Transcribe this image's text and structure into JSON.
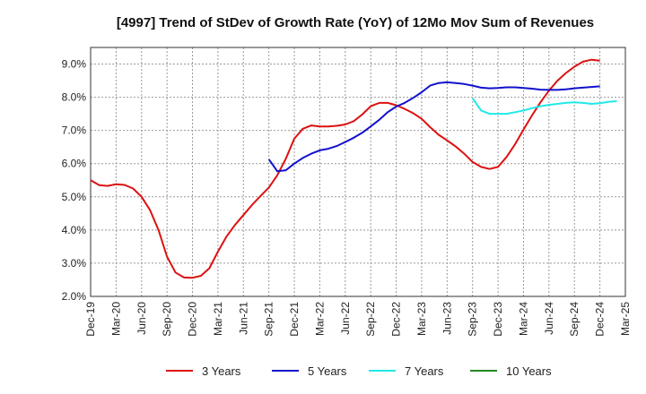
{
  "chart_data": {
    "type": "line",
    "title": "[4997]  Trend of StDev of Growth Rate (YoY) of 12Mo Mov Sum of Revenues",
    "xlabel": "",
    "ylabel": "",
    "ylim": [
      2.0,
      9.5
    ],
    "y_ticks": [
      "9.0%",
      "8.0%",
      "7.0%",
      "6.0%",
      "5.0%",
      "4.0%",
      "3.0%",
      "2.0%"
    ],
    "y_tick_values": [
      9,
      8,
      7,
      6,
      5,
      4,
      3,
      2
    ],
    "x_ticks": [
      "Dec-19",
      "Mar-20",
      "Jun-20",
      "Sep-20",
      "Dec-20",
      "Mar-21",
      "Jun-21",
      "Sep-21",
      "Dec-21",
      "Mar-22",
      "Jun-22",
      "Sep-22",
      "Dec-22",
      "Mar-23",
      "Jun-23",
      "Sep-23",
      "Dec-23",
      "Mar-24",
      "Jun-24",
      "Sep-24",
      "Dec-24",
      "Mar-25"
    ],
    "x_range_months": [
      0,
      63
    ],
    "grid": true,
    "legend_position": "bottom",
    "series": [
      {
        "name": "3 Years",
        "color": "#dd1111",
        "start_month": 0,
        "values": [
          5.5,
          5.35,
          5.33,
          5.38,
          5.36,
          5.25,
          5.0,
          4.6,
          4.0,
          3.2,
          2.72,
          2.57,
          2.56,
          2.62,
          2.85,
          3.35,
          3.8,
          4.15,
          4.45,
          4.75,
          5.02,
          5.28,
          5.65,
          6.15,
          6.75,
          7.05,
          7.15,
          7.12,
          7.12,
          7.14,
          7.18,
          7.28,
          7.48,
          7.73,
          7.83,
          7.83,
          7.76,
          7.65,
          7.52,
          7.35,
          7.1,
          6.87,
          6.7,
          6.52,
          6.3,
          6.05,
          5.9,
          5.84,
          5.9,
          6.2,
          6.58,
          7.03,
          7.45,
          7.85,
          8.2,
          8.5,
          8.73,
          8.92,
          9.07,
          9.13,
          9.1
        ]
      },
      {
        "name": "5 Years",
        "color": "#1111cc",
        "start_month": 21,
        "values": [
          6.13,
          5.77,
          5.8,
          6.0,
          6.17,
          6.3,
          6.4,
          6.45,
          6.53,
          6.65,
          6.78,
          6.93,
          7.12,
          7.32,
          7.55,
          7.72,
          7.83,
          7.98,
          8.15,
          8.35,
          8.43,
          8.45,
          8.43,
          8.4,
          8.35,
          8.29,
          8.27,
          8.28,
          8.3,
          8.3,
          8.28,
          8.26,
          8.23,
          8.22,
          8.22,
          8.24,
          8.27,
          8.29,
          8.31,
          8.33
        ]
      },
      {
        "name": "7 Years",
        "color": "#22e8e8",
        "start_month": 45,
        "values": [
          7.97,
          7.6,
          7.5,
          7.5,
          7.5,
          7.55,
          7.6,
          7.67,
          7.73,
          7.77,
          7.8,
          7.83,
          7.85,
          7.83,
          7.8,
          7.82,
          7.86,
          7.88
        ]
      },
      {
        "name": "10 Years",
        "color": "#228822",
        "start_month": 0,
        "values": []
      }
    ]
  }
}
